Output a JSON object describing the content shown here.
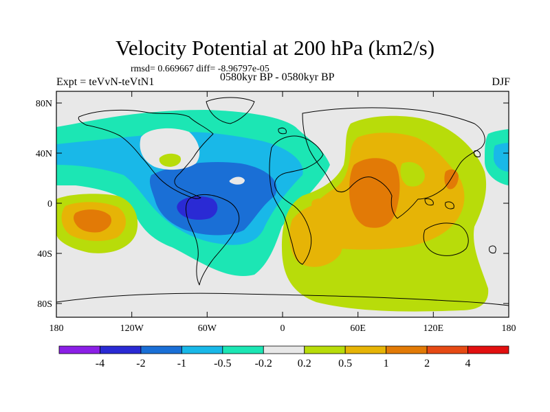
{
  "header": {
    "title": "Velocity Potential at 200 hPa (km2/s)",
    "stats": "rmsd= 0.669667 diff= -8.96797e-05",
    "left_label": "Expt = teVvN-teVtN1",
    "center_label": "0580kyr BP - 0580kyr BP",
    "right_label": "DJF"
  },
  "map": {
    "lat_ticks": [
      "80N",
      "40N",
      "0",
      "40S",
      "80S"
    ],
    "lon_ticks": [
      "180",
      "120W",
      "60W",
      "0",
      "60E",
      "120E",
      "180"
    ]
  },
  "colorbar": {
    "colors": [
      "#8b1fe6",
      "#2a2ad4",
      "#1a6fd6",
      "#19b8e8",
      "#1ce6b4",
      "#e8e8e8",
      "#b8dc0a",
      "#e6b406",
      "#e27a06",
      "#e64a14",
      "#e21010"
    ],
    "labels": [
      "-4",
      "-2",
      "-1",
      "-0.5",
      "-0.2",
      "0.2",
      "0.5",
      "1",
      "2",
      "4"
    ]
  }
}
